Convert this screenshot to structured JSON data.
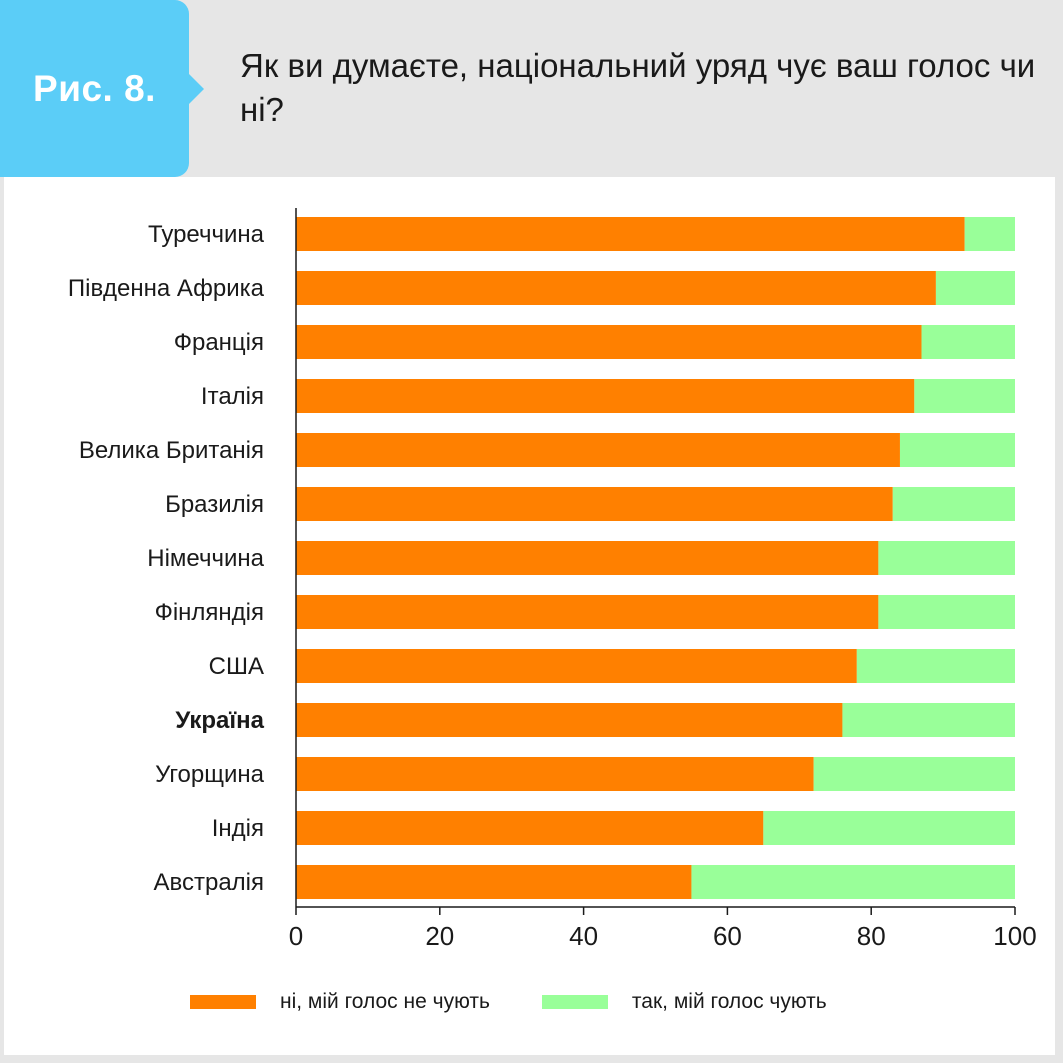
{
  "header": {
    "figure_label": "Рис. 8.",
    "title": "Як ви думаєте, національний уряд чує ваш голос чи ні?"
  },
  "colors": {
    "badge": "#5bcdf7",
    "header_bg": "#e6e6e6",
    "no": "#ff8000",
    "yes": "#99ff99"
  },
  "legend": {
    "no_label": "ні, мій голос не чують",
    "yes_label": "так, мій голос чують"
  },
  "chart_data": {
    "type": "bar",
    "orientation": "horizontal",
    "stacked": true,
    "categories": [
      "Туреччина",
      "Південна Африка",
      "Франція",
      "Італія",
      "Велика Британія",
      "Бразилія",
      "Німеччина",
      "Фінляндія",
      "США",
      "Україна",
      "Угорщина",
      "Індія",
      "Австралія"
    ],
    "highlight_category": "Україна",
    "series": [
      {
        "name": "ні, мій голос не чують",
        "color": "#ff8000",
        "values": [
          93,
          89,
          87,
          86,
          84,
          83,
          81,
          81,
          78,
          76,
          72,
          65,
          55
        ]
      },
      {
        "name": "так, мій голос чують",
        "color": "#99ff99",
        "values": [
          7,
          11,
          13,
          14,
          16,
          17,
          19,
          19,
          22,
          24,
          28,
          35,
          45
        ]
      }
    ],
    "xlim": [
      0,
      100
    ],
    "xticks": [
      0,
      20,
      40,
      60,
      80,
      100
    ],
    "grid": false,
    "legend_position": "bottom"
  }
}
